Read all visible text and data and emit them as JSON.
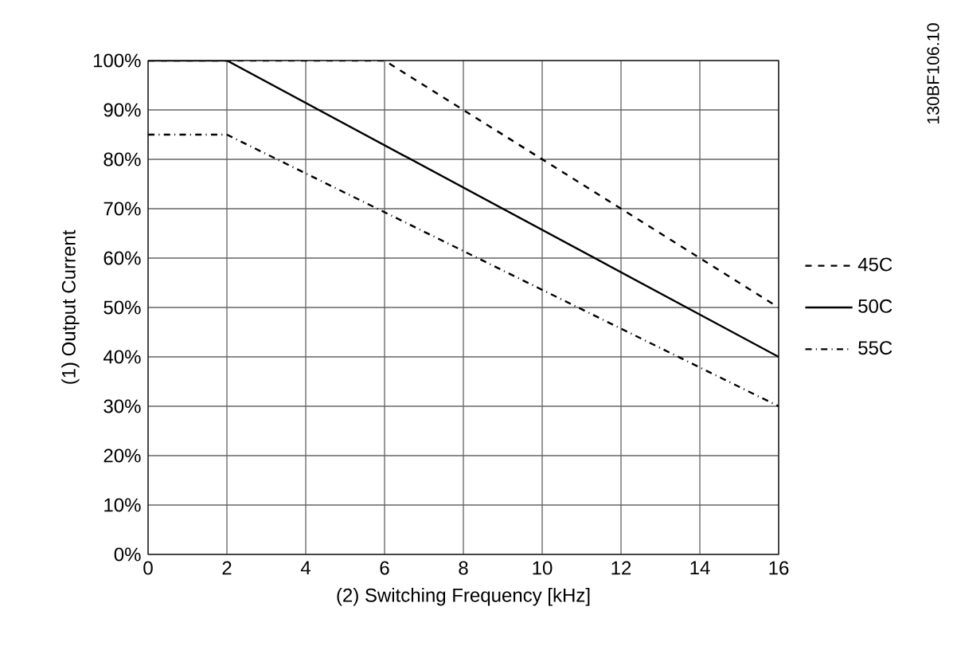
{
  "chart_data": {
    "type": "line",
    "xlabel": "(2) Switching Frequency [kHz]",
    "ylabel": "(1) Output Current",
    "xlim": [
      0,
      16
    ],
    "xticks": [
      0,
      2,
      4,
      6,
      8,
      10,
      12,
      14,
      16
    ],
    "ylim": [
      0,
      100
    ],
    "yticks": [
      {
        "value": 0,
        "label": "0%"
      },
      {
        "value": 10,
        "label": "10%"
      },
      {
        "value": 20,
        "label": "20%"
      },
      {
        "value": 30,
        "label": "30%"
      },
      {
        "value": 40,
        "label": "40%"
      },
      {
        "value": 50,
        "label": "50%"
      },
      {
        "value": 60,
        "label": "60%"
      },
      {
        "value": 70,
        "label": "70%"
      },
      {
        "value": 80,
        "label": "80%"
      },
      {
        "value": 90,
        "label": "90%"
      },
      {
        "value": 100,
        "label": "100%"
      }
    ],
    "grid": true,
    "legend": "right",
    "marker": "none",
    "series": [
      {
        "name": "45C",
        "color": "#000000",
        "line_style": "dashed",
        "x": [
          0,
          6,
          16
        ],
        "values": [
          100,
          100,
          50
        ]
      },
      {
        "name": "50C",
        "color": "#000000",
        "line_style": "solid",
        "x": [
          0,
          2,
          16
        ],
        "values": [
          100,
          100,
          40
        ]
      },
      {
        "name": "55C",
        "color": "#000000",
        "line_style": "dashdot",
        "x": [
          0,
          2,
          16
        ],
        "values": [
          85,
          85,
          30
        ]
      }
    ],
    "annotations": [
      "130BF106.10"
    ]
  }
}
